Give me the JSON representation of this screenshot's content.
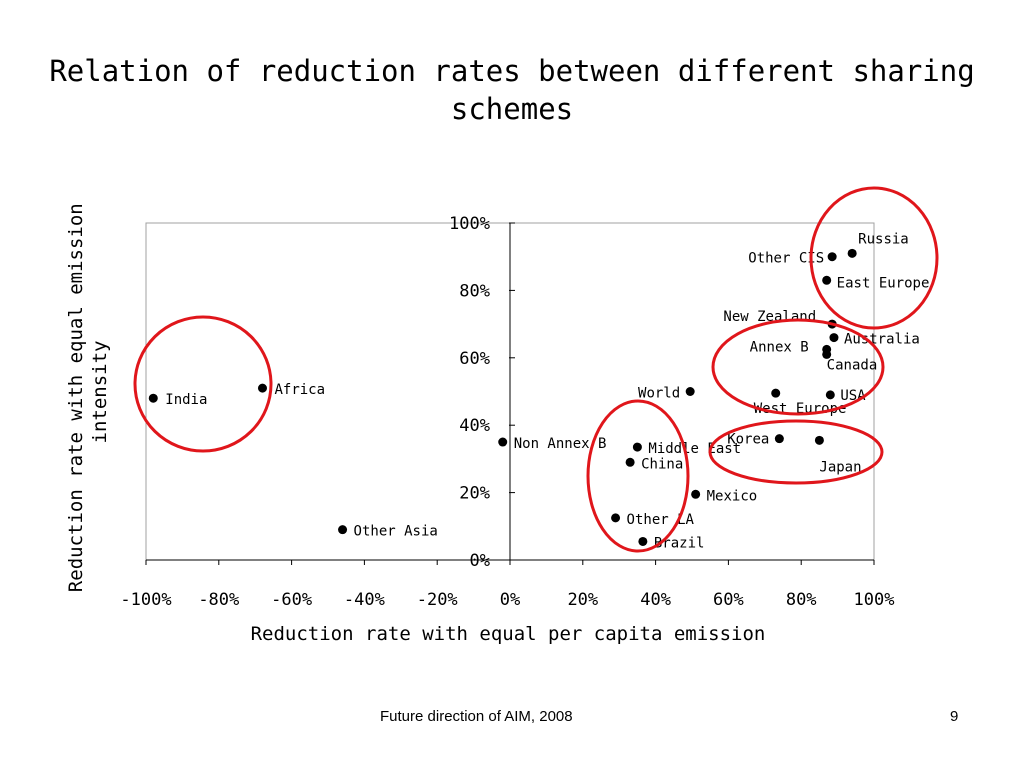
{
  "slide": {
    "title": "Relation of reduction rates between different sharing schemes",
    "footer": "Future direction of AIM, 2008",
    "page_number": "9"
  },
  "colors": {
    "highlight": "#e0161b",
    "point": "#000000",
    "frame": "#a0a0a0"
  },
  "chart_data": {
    "type": "scatter",
    "title": "",
    "xlabel": "Reduction rate with equal per capita emission",
    "ylabel": "Reduction rate with equal emission intensity",
    "xlim": [
      -1.0,
      1.0
    ],
    "ylim": [
      0.0,
      1.0
    ],
    "x_ticks": [
      -1.0,
      -0.8,
      -0.6,
      -0.4,
      -0.2,
      0.0,
      0.2,
      0.4,
      0.6,
      0.8,
      1.0
    ],
    "x_tick_labels": [
      "-100%",
      "-80%",
      "-60%",
      "-40%",
      "-20%",
      "0%",
      "20%",
      "40%",
      "60%",
      "80%",
      "100%"
    ],
    "y_ticks": [
      0.0,
      0.2,
      0.4,
      0.6,
      0.8,
      1.0
    ],
    "y_tick_labels": [
      "0%",
      "20%",
      "40%",
      "60%",
      "80%",
      "100%"
    ],
    "grid": false,
    "points": [
      {
        "label": "Russia",
        "x": 0.94,
        "y": 0.91
      },
      {
        "label": "Other CIS",
        "x": 0.885,
        "y": 0.9
      },
      {
        "label": "East Europe",
        "x": 0.87,
        "y": 0.83
      },
      {
        "label": "New Zealand",
        "x": 0.885,
        "y": 0.7
      },
      {
        "label": "Australia",
        "x": 0.89,
        "y": 0.66
      },
      {
        "label": "Annex B",
        "x": 0.87,
        "y": 0.625
      },
      {
        "label": "Canada",
        "x": 0.87,
        "y": 0.61
      },
      {
        "label": "USA",
        "x": 0.88,
        "y": 0.49
      },
      {
        "label": "World",
        "x": 0.495,
        "y": 0.5
      },
      {
        "label": "West Europe",
        "x": 0.73,
        "y": 0.495
      },
      {
        "label": "Korea",
        "x": 0.74,
        "y": 0.36
      },
      {
        "label": "Japan",
        "x": 0.85,
        "y": 0.355
      },
      {
        "label": "Non Annex B",
        "x": -0.02,
        "y": 0.35
      },
      {
        "label": "Middle East",
        "x": 0.35,
        "y": 0.335
      },
      {
        "label": "China",
        "x": 0.33,
        "y": 0.29
      },
      {
        "label": "Mexico",
        "x": 0.51,
        "y": 0.195
      },
      {
        "label": "Other LA",
        "x": 0.29,
        "y": 0.125
      },
      {
        "label": "Brazil",
        "x": 0.365,
        "y": 0.055
      },
      {
        "label": "India",
        "x": -0.98,
        "y": 0.48
      },
      {
        "label": "Africa",
        "x": -0.68,
        "y": 0.51
      },
      {
        "label": "Other Asia",
        "x": -0.46,
        "y": 0.09
      }
    ]
  }
}
